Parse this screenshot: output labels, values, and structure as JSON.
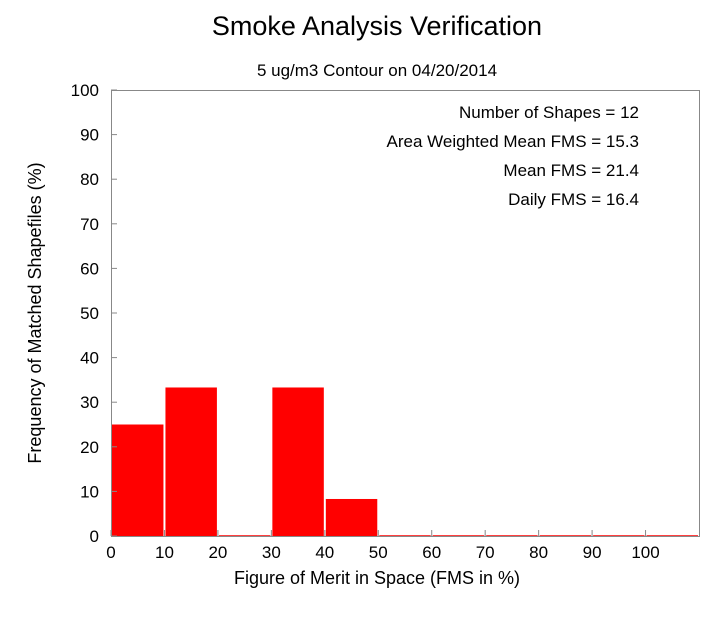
{
  "chart_data": {
    "type": "bar",
    "title": "Smoke Analysis Verification",
    "subtitle": "5 ug/m3 Contour on 04/20/2014",
    "xlabel": "Figure of Merit in Space (FMS in %)",
    "ylabel": "Frequency of Matched Shapefiles (%)",
    "xlim": [
      0,
      110
    ],
    "ylim": [
      0,
      100
    ],
    "x_ticks": [
      "0",
      "10",
      "20",
      "30",
      "40",
      "50",
      "60",
      "70",
      "80",
      "90",
      "100"
    ],
    "y_ticks": [
      "0",
      "10",
      "20",
      "30",
      "40",
      "50",
      "60",
      "70",
      "80",
      "90",
      "100"
    ],
    "bins": [
      {
        "start": 0,
        "end": 10,
        "value": 25.0
      },
      {
        "start": 10,
        "end": 20,
        "value": 33.3
      },
      {
        "start": 20,
        "end": 30,
        "value": 0
      },
      {
        "start": 30,
        "end": 40,
        "value": 33.3
      },
      {
        "start": 40,
        "end": 50,
        "value": 8.3
      },
      {
        "start": 50,
        "end": 60,
        "value": 0
      },
      {
        "start": 60,
        "end": 70,
        "value": 0
      },
      {
        "start": 70,
        "end": 80,
        "value": 0
      },
      {
        "start": 80,
        "end": 90,
        "value": 0
      },
      {
        "start": 90,
        "end": 100,
        "value": 0
      },
      {
        "start": 100,
        "end": 110,
        "value": 0
      }
    ],
    "bar_color": "#ff0000",
    "stats": [
      "Number of Shapes = 12",
      "Area Weighted Mean FMS = 15.3",
      "Mean FMS = 21.4",
      "Daily FMS = 16.4"
    ],
    "grid": false,
    "legend": "none"
  }
}
